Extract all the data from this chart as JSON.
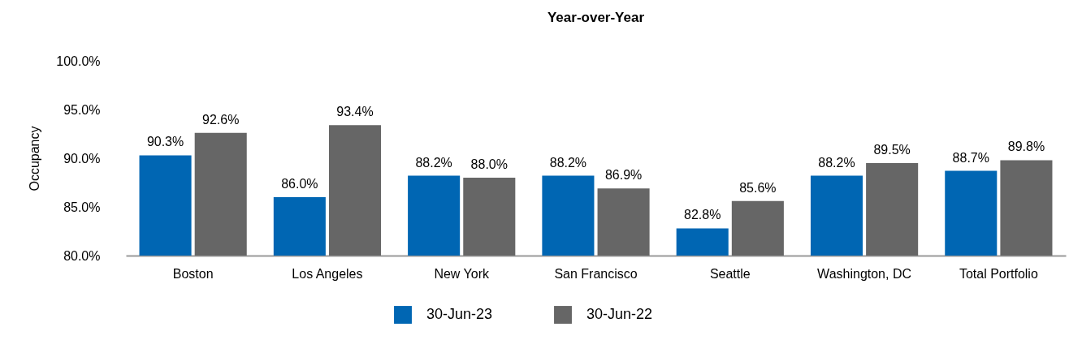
{
  "chart_data": {
    "type": "bar",
    "title": "Year-over-Year",
    "ylabel": "Occupancy",
    "categories": [
      "Boston",
      "Los Angeles",
      "New York",
      "San Francisco",
      "Seattle",
      "Washington, DC",
      "Total Portfolio"
    ],
    "series": [
      {
        "name": "30-Jun-23",
        "color": "#0066b3",
        "values": [
          90.3,
          86.0,
          88.2,
          88.2,
          82.8,
          88.2,
          88.7
        ],
        "value_labels": [
          "90.3%",
          "86.0%",
          "88.2%",
          "88.2%",
          "82.8%",
          "88.2%",
          "88.7%"
        ]
      },
      {
        "name": "30-Jun-22",
        "color": "#666666",
        "values": [
          92.6,
          93.4,
          88.0,
          86.9,
          85.6,
          89.5,
          89.8
        ],
        "value_labels": [
          "92.6%",
          "93.4%",
          "88.0%",
          "86.9%",
          "85.6%",
          "89.5%",
          "89.8%"
        ]
      }
    ],
    "ylim": [
      80,
      100
    ],
    "yticks": [
      {
        "value": 80,
        "label": "80.0%"
      },
      {
        "value": 85,
        "label": "85.0%"
      },
      {
        "value": 90,
        "label": "90.0%"
      },
      {
        "value": 95,
        "label": "95.0%"
      },
      {
        "value": 100,
        "label": "100.0%"
      }
    ],
    "grid": false,
    "legend": "bottom"
  }
}
